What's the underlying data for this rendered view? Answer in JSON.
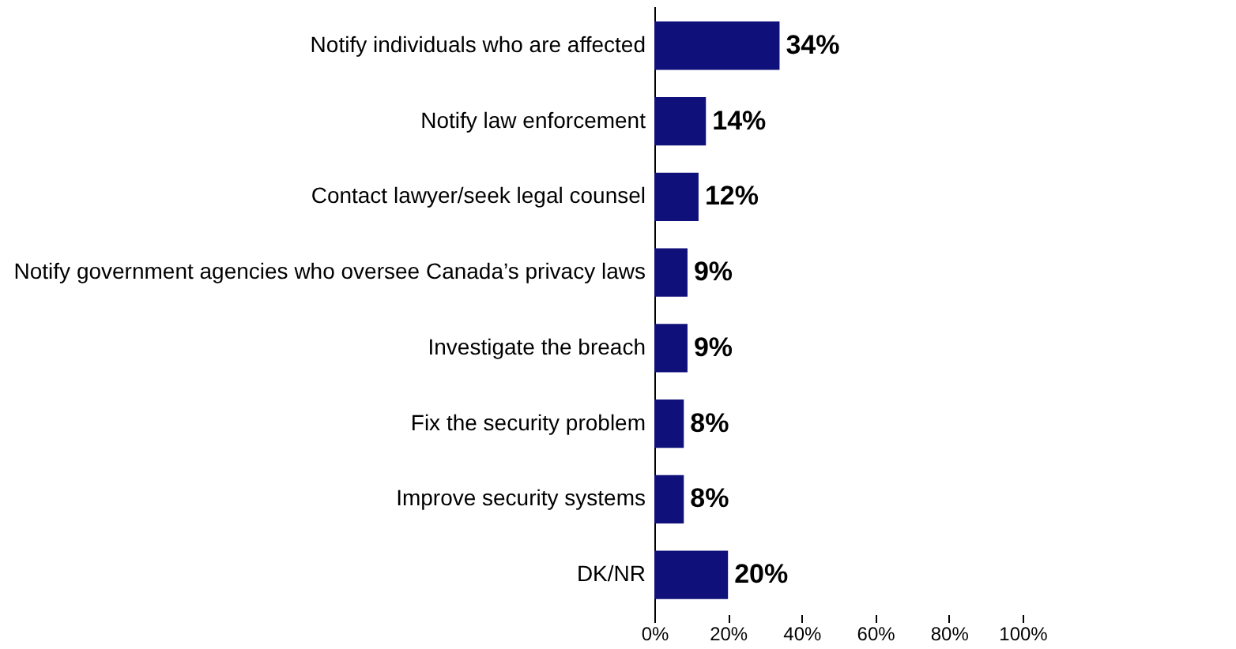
{
  "chart_data": {
    "type": "bar",
    "orientation": "horizontal",
    "categories": [
      "Notify individuals who are affected",
      "Notify law enforcement",
      "Contact lawyer/seek legal counsel",
      "Notify government agencies who oversee Canada’s privacy laws",
      "Investigate the breach",
      "Fix the security problem",
      "Improve security systems",
      "DK/NR"
    ],
    "values": [
      34,
      14,
      12,
      9,
      9,
      8,
      8,
      20
    ],
    "value_labels": [
      "34%",
      "14%",
      "12%",
      "9%",
      "9%",
      "8%",
      "8%",
      "20%"
    ],
    "color": "#10107a",
    "xlim": [
      0,
      100
    ],
    "xticks": [
      {
        "value": 0,
        "label": "0%"
      },
      {
        "value": 20,
        "label": "20%"
      },
      {
        "value": 40,
        "label": "40%"
      },
      {
        "value": 60,
        "label": "60%"
      },
      {
        "value": 80,
        "label": "80%"
      },
      {
        "value": 100,
        "label": "100%"
      }
    ]
  }
}
